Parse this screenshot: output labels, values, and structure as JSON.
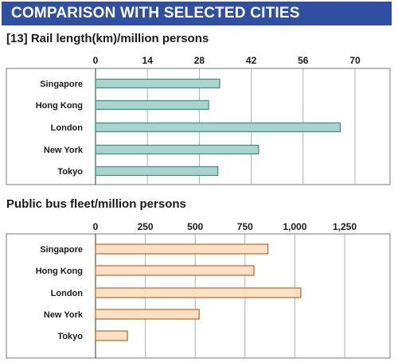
{
  "header": {
    "title": "COMPARISON WITH SELECTED CITIES"
  },
  "colors": {
    "header_bg": "#2f4fa3",
    "rail_bar": "#a9d3cd",
    "rail_bar_edge": "#3f8a84",
    "bus_bar": "#fde1c2",
    "bus_bar_edge": "#b8682c"
  },
  "chart_data": [
    {
      "type": "bar",
      "orientation": "horizontal",
      "title": "[13]  Rail length(km)/million persons",
      "categories": [
        "Singapore",
        "Hong Kong",
        "London",
        "New York",
        "Tokyo"
      ],
      "values": [
        33.5,
        30.5,
        66,
        44,
        33
      ],
      "xlim": [
        0,
        70
      ],
      "xticks": [
        0,
        14,
        28,
        42,
        56,
        70
      ],
      "xtick_labels": [
        "0",
        "14",
        "28",
        "42",
        "56",
        "70"
      ],
      "grid": true
    },
    {
      "type": "bar",
      "orientation": "horizontal",
      "title": "Public bus fleet/million persons",
      "categories": [
        "Singapore",
        "Hong Kong",
        "London",
        "New York",
        "Tokyo"
      ],
      "values": [
        865,
        795,
        1030,
        520,
        160
      ],
      "xlim": [
        0,
        1250
      ],
      "xticks": [
        0,
        250,
        500,
        750,
        1000,
        1250
      ],
      "xtick_labels": [
        "0",
        "250",
        "500",
        "750",
        "1,000",
        "1,250"
      ],
      "grid": true
    }
  ]
}
